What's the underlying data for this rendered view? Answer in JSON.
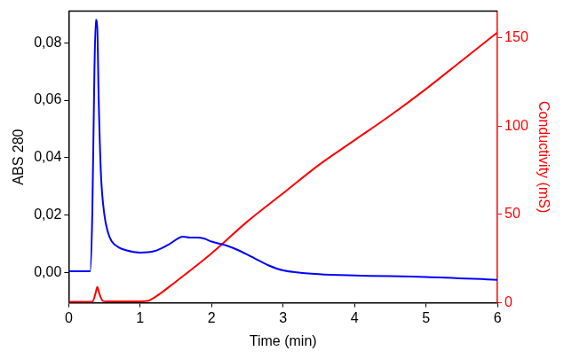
{
  "chart_data": {
    "type": "line",
    "x_label": "Time (min)",
    "y_label": "ABS 280",
    "y2_label": "Conductivity (mS)",
    "xlim": [
      0,
      6
    ],
    "xticks": [
      0,
      1,
      2,
      3,
      4,
      5,
      6
    ],
    "ylim": [
      -0.0105,
      0.091
    ],
    "yticks": [
      {
        "value": 0,
        "label": "0,00"
      },
      {
        "value": 0.02,
        "label": "0,02"
      },
      {
        "value": 0.04,
        "label": "0,04"
      },
      {
        "value": 0.06,
        "label": "0,06"
      },
      {
        "value": 0.08,
        "label": "0,08"
      }
    ],
    "y2lim": [
      0,
      165
    ],
    "y2ticks": [
      0,
      50,
      100,
      150
    ],
    "grid": false,
    "series": [
      {
        "color": "#0000ff",
        "axis": "y",
        "x": [
          0,
          0.2,
          0.3,
          0.33,
          0.36,
          0.38,
          0.4,
          0.42,
          0.45,
          0.5,
          0.55,
          0.6,
          0.7,
          0.8,
          1.0,
          1.2,
          1.4,
          1.6,
          1.7,
          1.8,
          1.9,
          2.0,
          2.2,
          2.4,
          2.6,
          2.8,
          3.0,
          3.5,
          4.0,
          5.0,
          6.0
        ],
        "values": [
          0.0005,
          0.0005,
          0.0005,
          0.02,
          0.07,
          0.088,
          0.085,
          0.06,
          0.035,
          0.02,
          0.014,
          0.011,
          0.0088,
          0.0078,
          0.007,
          0.0075,
          0.0098,
          0.0125,
          0.0122,
          0.0122,
          0.0118,
          0.0108,
          0.0095,
          0.0075,
          0.005,
          0.0025,
          0.0008,
          -0.0005,
          -0.001,
          -0.0015,
          -0.0025
        ]
      },
      {
        "color": "#ff0000",
        "axis": "y2",
        "x": [
          0,
          0.33,
          0.38,
          0.4,
          0.43,
          0.48,
          0.55,
          1.0,
          1.1,
          1.2,
          1.5,
          2.0,
          2.5,
          3.0,
          3.5,
          4.0,
          4.5,
          5.0,
          5.5,
          6.0
        ],
        "values": [
          0.5,
          0.5,
          6,
          9,
          5,
          1,
          0.8,
          0.8,
          1,
          3,
          12,
          28,
          46,
          62,
          78,
          92,
          106,
          121,
          137,
          153
        ]
      }
    ]
  }
}
